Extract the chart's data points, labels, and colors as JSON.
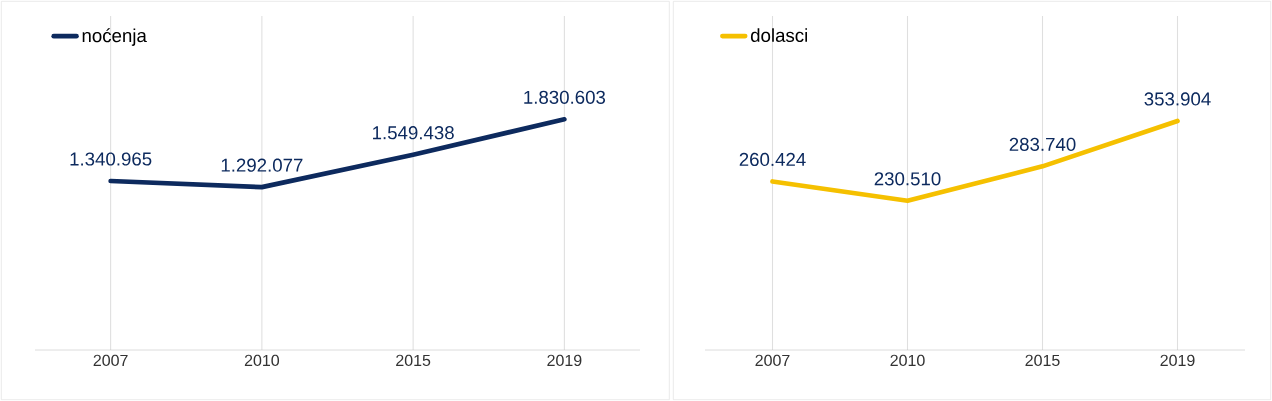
{
  "chart_data": [
    {
      "type": "line",
      "categories": [
        "2007",
        "2010",
        "2015",
        "2019"
      ],
      "series": [
        {
          "name": "noćenja",
          "color": "#0d2a5e",
          "values": [
            1340965,
            1292077,
            1549438,
            1830603
          ],
          "value_labels": [
            "1.340.965",
            "1.292.077",
            "1.549.438",
            "1.830.603"
          ]
        }
      ],
      "ylim": [
        0,
        2650000
      ],
      "legend": "top left",
      "grid": "x",
      "tick_labels": "x"
    },
    {
      "type": "line",
      "categories": [
        "2007",
        "2010",
        "2015",
        "2019"
      ],
      "series": [
        {
          "name": "dolasci",
          "color": "#f5c000",
          "values": [
            260424,
            230510,
            283740,
            353904
          ],
          "value_labels": [
            "260.424",
            "230.510",
            "283.740",
            "353.904"
          ]
        }
      ],
      "ylim": [
        0,
        516000
      ],
      "legend": "top left",
      "grid": "x",
      "tick_labels": "x"
    }
  ]
}
